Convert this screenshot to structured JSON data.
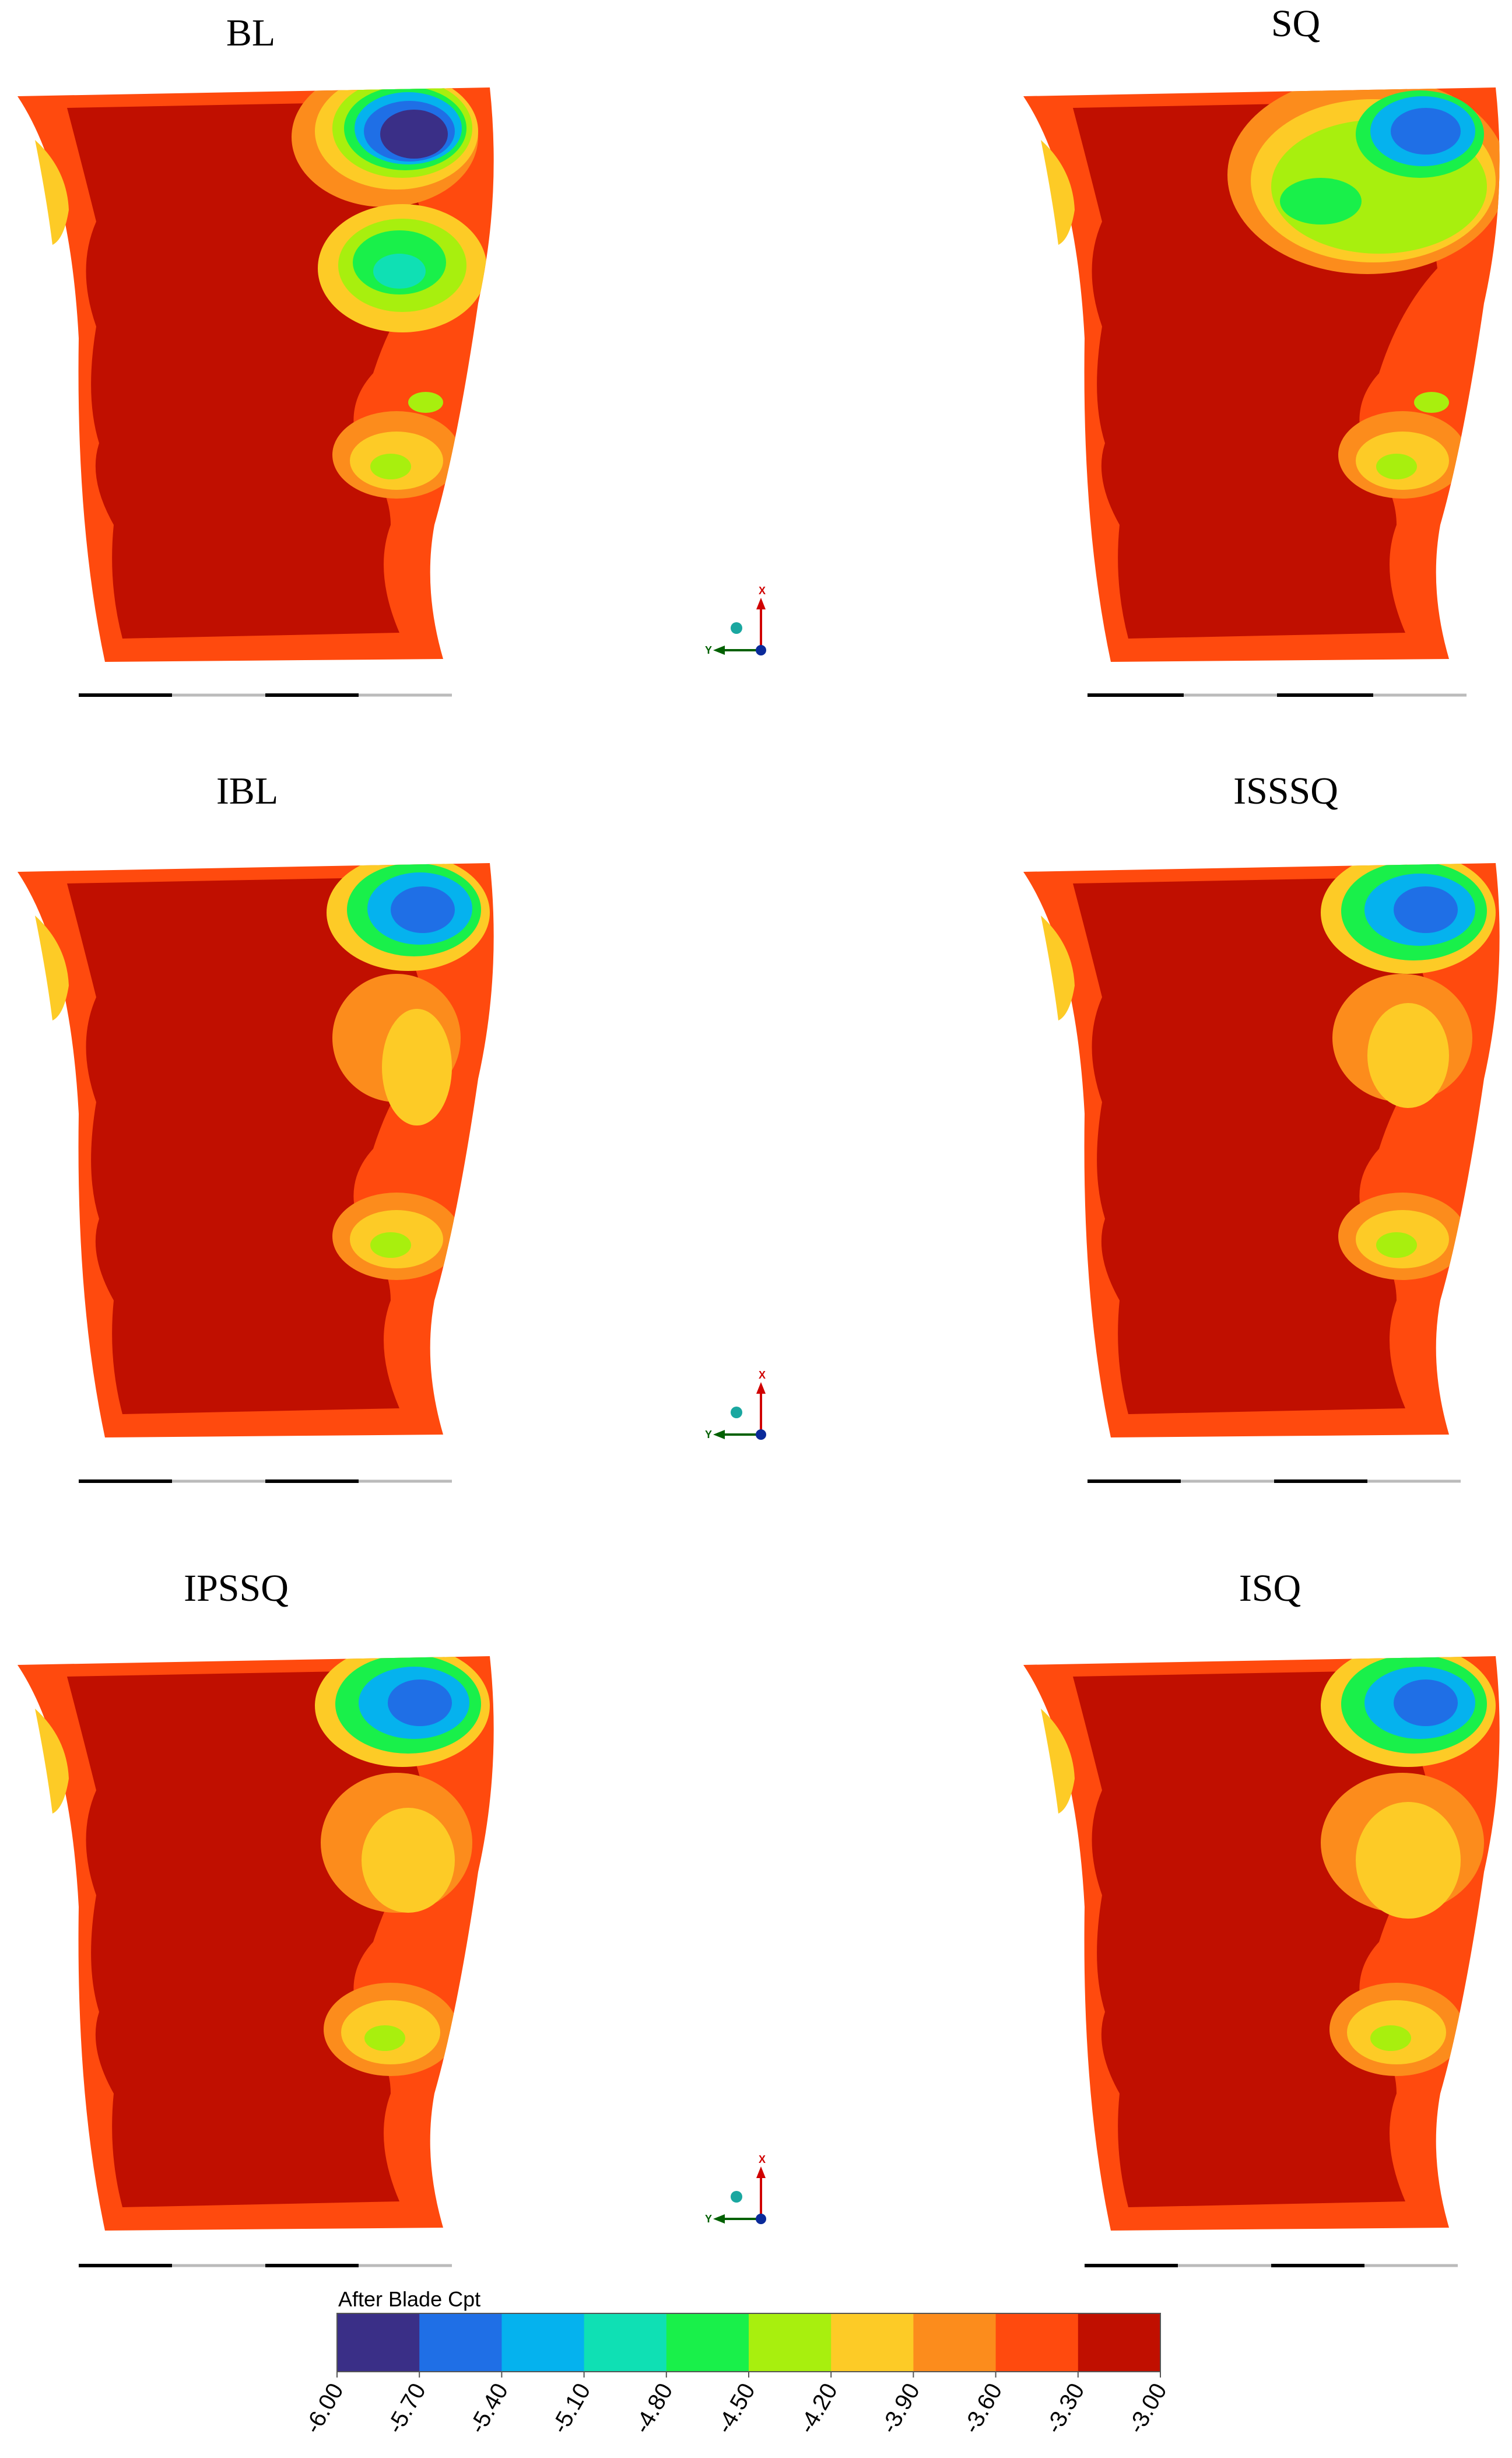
{
  "panels": [
    {
      "id": "BL",
      "title": "BL"
    },
    {
      "id": "SQ",
      "title": "SQ"
    },
    {
      "id": "IBL",
      "title": "IBL"
    },
    {
      "id": "ISSSQ",
      "title": "ISSSQ"
    },
    {
      "id": "IPSSQ",
      "title": "IPSSQ"
    },
    {
      "id": "ISQ",
      "title": "ISQ"
    }
  ],
  "axes_triad": {
    "x_label": "X",
    "y_label": "Y"
  },
  "colorbar": {
    "title": "After Blade Cpt",
    "ticks": [
      "-6.00",
      "-5.70",
      "-5.40",
      "-5.10",
      "-4.80",
      "-4.50",
      "-4.20",
      "-3.90",
      "-3.60",
      "-3.30",
      "-3.00"
    ],
    "colors": [
      "#3a2f87",
      "#1f6fe6",
      "#05b2ee",
      "#0fe0b4",
      "#19f04a",
      "#a8ef0e",
      "#fdcb26",
      "#fc8c1c",
      "#ff4a0e",
      "#c00f00"
    ]
  },
  "palette": {
    "deep": "#3a2f87",
    "blue": "#1f6fe6",
    "cyan": "#05b2ee",
    "teal": "#0fe0b4",
    "green": "#19f04a",
    "lime": "#a8ef0e",
    "yellow": "#fdcb26",
    "orange": "#fc8c1c",
    "redorange": "#ff4a0e",
    "darkred": "#c00f00"
  }
}
